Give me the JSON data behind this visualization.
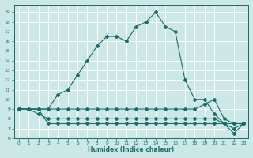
{
  "xlabel": "Humidex (Indice chaleur)",
  "bg_color": "#cce8e6",
  "grid_color": "#ffffff",
  "line_color": "#1a6b6b",
  "xlim": [
    -0.5,
    23.5
  ],
  "ylim": [
    6,
    19.8
  ],
  "yticks": [
    6,
    7,
    8,
    9,
    10,
    11,
    12,
    13,
    14,
    15,
    16,
    17,
    18,
    19
  ],
  "xticks": [
    0,
    1,
    2,
    3,
    4,
    5,
    6,
    7,
    8,
    9,
    10,
    11,
    12,
    13,
    14,
    15,
    16,
    17,
    18,
    19,
    20,
    21,
    22,
    23
  ],
  "main_x": [
    0,
    1,
    2,
    3,
    4,
    5,
    6,
    7,
    8,
    9,
    10,
    11,
    12,
    13,
    14,
    15,
    16,
    17,
    18,
    19,
    20,
    21,
    22,
    23
  ],
  "main_y": [
    9,
    9,
    9,
    9,
    10.5,
    11,
    12.5,
    14,
    15.5,
    16.5,
    16.5,
    16,
    17.5,
    18,
    19,
    17.5,
    17,
    12,
    10,
    10,
    8.5,
    7.5,
    7.5,
    7.5
  ],
  "line1_x": [
    0,
    1,
    2,
    3,
    4,
    5,
    6,
    7,
    8,
    9,
    10,
    11,
    12,
    13,
    14,
    15,
    16,
    17,
    18,
    19,
    20,
    21,
    22,
    23
  ],
  "line1_y": [
    9,
    9,
    9,
    9,
    9,
    9,
    9,
    9,
    9,
    9,
    9,
    9,
    9,
    9,
    9,
    9,
    9,
    9,
    9,
    9.5,
    10,
    8,
    7.5,
    7.5
  ],
  "line2_x": [
    0,
    1,
    2,
    3,
    4,
    5,
    6,
    7,
    8,
    9,
    10,
    11,
    12,
    13,
    14,
    15,
    16,
    17,
    18,
    19,
    20,
    21,
    22,
    23
  ],
  "line2_y": [
    9,
    9,
    8.5,
    8,
    8,
    8,
    8,
    8,
    8,
    8,
    8,
    8,
    8,
    8,
    8,
    8,
    8,
    8,
    8,
    8,
    8,
    7.5,
    7,
    7.5
  ],
  "line3_x": [
    0,
    1,
    2,
    3,
    4,
    5,
    6,
    7,
    8,
    9,
    10,
    11,
    12,
    13,
    14,
    15,
    16,
    17,
    18,
    19,
    20,
    21,
    22,
    23
  ],
  "line3_y": [
    9,
    9,
    9,
    7.5,
    7.5,
    7.5,
    7.5,
    7.5,
    7.5,
    7.5,
    7.5,
    7.5,
    7.5,
    7.5,
    7.5,
    7.5,
    7.5,
    7.5,
    7.5,
    7.5,
    7.5,
    7.5,
    6.5,
    7.5
  ]
}
